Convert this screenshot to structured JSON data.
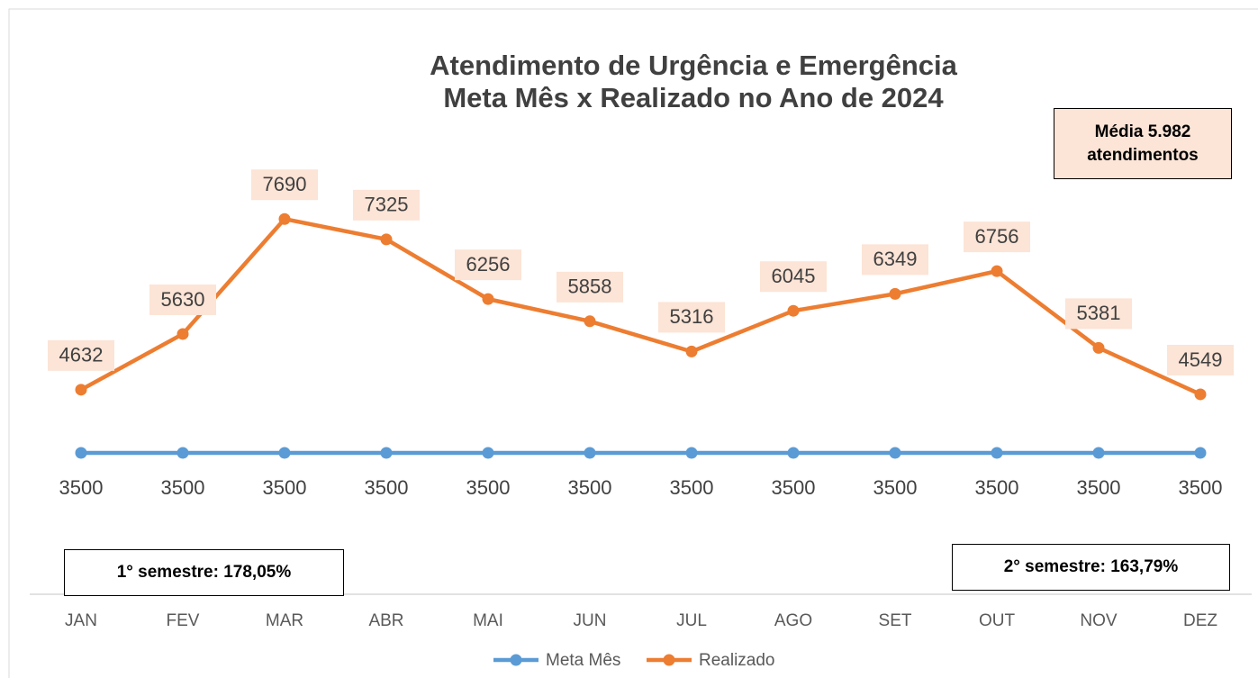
{
  "chart_data": {
    "type": "line",
    "title": "Atendimento de Urgência e Emergência",
    "subtitle": "Meta Mês x Realizado no Ano de 2024",
    "categories": [
      "JAN",
      "FEV",
      "MAR",
      "ABR",
      "MAI",
      "JUN",
      "JUL",
      "AGO",
      "SET",
      "OUT",
      "NOV",
      "DEZ"
    ],
    "series": [
      {
        "name": "Meta Mês",
        "color": "#5b9bd5",
        "values": [
          3500,
          3500,
          3500,
          3500,
          3500,
          3500,
          3500,
          3500,
          3500,
          3500,
          3500,
          3500
        ]
      },
      {
        "name": "Realizado",
        "color": "#ed7d31",
        "values": [
          4632,
          5630,
          7690,
          7325,
          6256,
          5858,
          5316,
          6045,
          6349,
          6756,
          5381,
          4549
        ]
      }
    ],
    "ylim": [
      1000,
      8500
    ],
    "annotations": [
      "Média 5.982 atendimentos",
      "1° semestre: 178,05%",
      "2° semestre: 163,79%"
    ]
  }
}
